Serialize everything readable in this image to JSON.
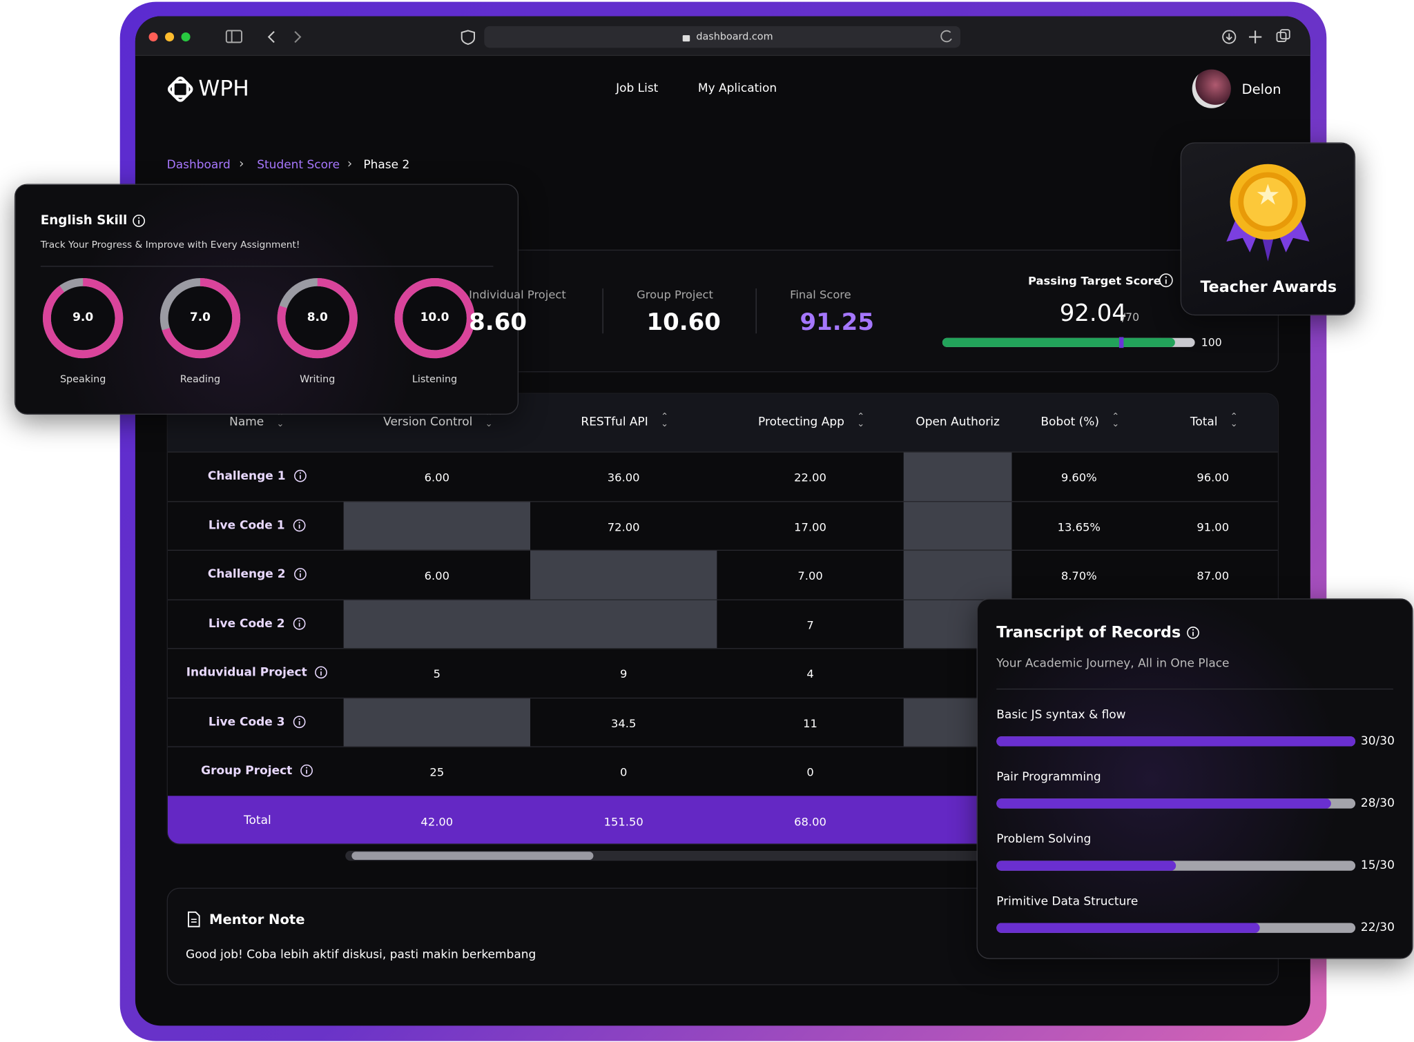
{
  "browser": {
    "url": "dashboard.com"
  },
  "header": {
    "logo": "WPH",
    "nav": [
      "Job List",
      "My Aplication"
    ],
    "user": "Delon"
  },
  "breadcrumb": [
    "Dashboard",
    "Student Score",
    "Phase 2"
  ],
  "scores": [
    {
      "label": "Individual Project",
      "value": "8.60"
    },
    {
      "label": "Group Project",
      "value": "10.60"
    },
    {
      "label": "Final Score",
      "value": "91.25"
    }
  ],
  "target": {
    "label": "Passing Target Score",
    "value": 92.04,
    "target": 70,
    "target_label": "/70",
    "max": 100
  },
  "award": {
    "title": "Teacher Awards"
  },
  "english": {
    "title": "English Skill",
    "subtitle": "Track Your Progress & Improve with Every Assignment!",
    "scale_max": 10,
    "skills": [
      {
        "name": "Speaking",
        "value": 9,
        "label": "9.0"
      },
      {
        "name": "Reading",
        "value": 7,
        "label": "7.0"
      },
      {
        "name": "Writing",
        "value": 8,
        "label": "8.0"
      },
      {
        "name": "Listening",
        "value": 10,
        "label": "10.0"
      }
    ]
  },
  "table": {
    "columns": [
      "Name",
      "Version Control",
      "RESTful API",
      "Protecting App",
      "Open Authoriz",
      "Bobot (%)",
      "Total"
    ],
    "rows": [
      {
        "name": "Challenge 1",
        "cells": [
          "6.00",
          "36.00",
          "22.00",
          null,
          "9.60%",
          "96.00"
        ]
      },
      {
        "name": "Live Code 1",
        "cells": [
          null,
          "72.00",
          "17.00",
          null,
          "13.65%",
          "91.00"
        ]
      },
      {
        "name": "Challenge 2",
        "cells": [
          "6.00",
          null,
          "7.00",
          null,
          "8.70%",
          "87.00"
        ]
      },
      {
        "name": "Live Code 2",
        "cells": [
          null,
          null,
          "7",
          null
        ]
      },
      {
        "name": "Induvidual Project",
        "cells": [
          "5",
          "9",
          "4"
        ]
      },
      {
        "name": "Live Code 3",
        "cells": [
          null,
          "34.5",
          "11",
          null
        ]
      },
      {
        "name": "Group Project",
        "cells": [
          "25",
          "0",
          "0"
        ]
      }
    ],
    "total": {
      "name": "Total",
      "cells": [
        "42.00",
        "151.50",
        "68.00"
      ]
    }
  },
  "mentor": {
    "title": "Mentor Note",
    "text": "Good job! Coba lebih aktif diskusi, pasti makin berkembang"
  },
  "transcript": {
    "title": "Transcript of Records",
    "subtitle": "Your Academic Journey, All in One Place",
    "items": [
      {
        "name": "Basic JS syntax & flow",
        "score": 30,
        "max": 30,
        "label": "30/30"
      },
      {
        "name": "Pair Programming",
        "score": 28,
        "max": 30,
        "label": "28/30"
      },
      {
        "name": "Problem Solving",
        "score": 15,
        "max": 30,
        "label": "15/30"
      },
      {
        "name": "Primitive Data Structure",
        "score": 22,
        "max": 30,
        "label": "22/30"
      }
    ]
  }
}
